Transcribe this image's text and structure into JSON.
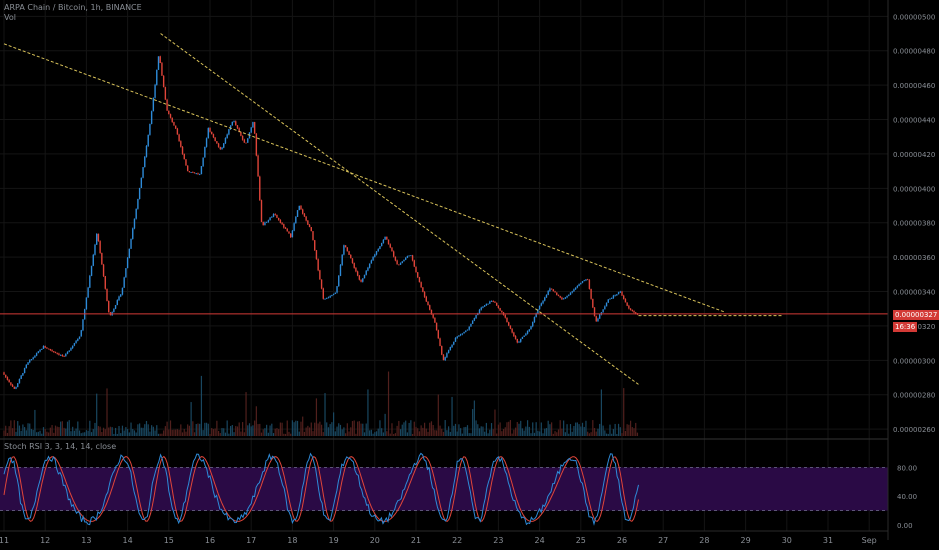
{
  "header": {
    "title": "ARPA Chain / Bitcoin, 1h, BINANCE",
    "vol_label": "Vol"
  },
  "indicator": {
    "label": "Stoch RSI 3, 3, 14, 14, close",
    "ticks": [
      "80.00",
      "40.00",
      "0.00"
    ],
    "upper_band": 80,
    "lower_band": 20
  },
  "price_axis": {
    "ticks": [
      "0.00000500",
      "0.00000480",
      "0.00000460",
      "0.00000440",
      "0.00000420",
      "0.00000400",
      "0.00000380",
      "0.00000360",
      "0.00000340",
      "0.00000320",
      "0.00000300",
      "0.00000280",
      "0.00000260"
    ],
    "current_price": "0.00000327",
    "countdown": "16:36"
  },
  "time_axis": {
    "ticks": [
      "11",
      "12",
      "13",
      "14",
      "15",
      "16",
      "17",
      "18",
      "19",
      "20",
      "21",
      "22",
      "23",
      "24",
      "25",
      "26",
      "27",
      "28",
      "29",
      "30",
      "31",
      "Sep"
    ]
  },
  "colors": {
    "up": "#2e8bd8",
    "down": "#e0453a",
    "trendline": "#d8c25a",
    "price_line": "#d33a36",
    "stoch_k": "#2e8bd8",
    "stoch_d": "#e0453a",
    "band_fill": "#2a0a45"
  },
  "chart_data": {
    "type": "candlestick",
    "timeframe": "1h",
    "x_range": [
      "Aug 11",
      "Sep 1"
    ],
    "ylim": [
      2.56e-06,
      5.06e-06
    ],
    "price_keypoints": [
      {
        "day": 11.0,
        "price": 2.93e-06
      },
      {
        "day": 11.3,
        "price": 2.83e-06
      },
      {
        "day": 11.6,
        "price": 2.98e-06
      },
      {
        "day": 12.0,
        "price": 3.08e-06
      },
      {
        "day": 12.5,
        "price": 3.02e-06
      },
      {
        "day": 12.9,
        "price": 3.15e-06
      },
      {
        "day": 13.3,
        "price": 3.75e-06
      },
      {
        "day": 13.6,
        "price": 3.25e-06
      },
      {
        "day": 13.9,
        "price": 3.4e-06
      },
      {
        "day": 14.3,
        "price": 3.95e-06
      },
      {
        "day": 14.6,
        "price": 4.4e-06
      },
      {
        "day": 14.8,
        "price": 4.78e-06
      },
      {
        "day": 15.0,
        "price": 4.45e-06
      },
      {
        "day": 15.2,
        "price": 4.35e-06
      },
      {
        "day": 15.5,
        "price": 4.1e-06
      },
      {
        "day": 15.8,
        "price": 4.08e-06
      },
      {
        "day": 16.0,
        "price": 4.35e-06
      },
      {
        "day": 16.3,
        "price": 4.22e-06
      },
      {
        "day": 16.6,
        "price": 4.4e-06
      },
      {
        "day": 16.9,
        "price": 4.25e-06
      },
      {
        "day": 17.1,
        "price": 4.4e-06
      },
      {
        "day": 17.3,
        "price": 3.78e-06
      },
      {
        "day": 17.6,
        "price": 3.85e-06
      },
      {
        "day": 18.0,
        "price": 3.72e-06
      },
      {
        "day": 18.2,
        "price": 3.9e-06
      },
      {
        "day": 18.5,
        "price": 3.75e-06
      },
      {
        "day": 18.8,
        "price": 3.35e-06
      },
      {
        "day": 19.1,
        "price": 3.4e-06
      },
      {
        "day": 19.3,
        "price": 3.68e-06
      },
      {
        "day": 19.7,
        "price": 3.45e-06
      },
      {
        "day": 20.0,
        "price": 3.6e-06
      },
      {
        "day": 20.3,
        "price": 3.72e-06
      },
      {
        "day": 20.6,
        "price": 3.55e-06
      },
      {
        "day": 20.9,
        "price": 3.62e-06
      },
      {
        "day": 21.2,
        "price": 3.4e-06
      },
      {
        "day": 21.5,
        "price": 3.22e-06
      },
      {
        "day": 21.7,
        "price": 3e-06
      },
      {
        "day": 22.0,
        "price": 3.13e-06
      },
      {
        "day": 22.3,
        "price": 3.18e-06
      },
      {
        "day": 22.6,
        "price": 3.3e-06
      },
      {
        "day": 22.9,
        "price": 3.35e-06
      },
      {
        "day": 23.2,
        "price": 3.25e-06
      },
      {
        "day": 23.5,
        "price": 3.1e-06
      },
      {
        "day": 23.8,
        "price": 3.18e-06
      },
      {
        "day": 24.0,
        "price": 3.3e-06
      },
      {
        "day": 24.3,
        "price": 3.42e-06
      },
      {
        "day": 24.6,
        "price": 3.35e-06
      },
      {
        "day": 24.9,
        "price": 3.42e-06
      },
      {
        "day": 25.2,
        "price": 3.48e-06
      },
      {
        "day": 25.4,
        "price": 3.22e-06
      },
      {
        "day": 25.7,
        "price": 3.35e-06
      },
      {
        "day": 26.0,
        "price": 3.4e-06
      },
      {
        "day": 26.2,
        "price": 3.3e-06
      },
      {
        "day": 26.4,
        "price": 3.27e-06
      }
    ],
    "trendlines": [
      {
        "from": {
          "day": 11.0,
          "price": 4.84e-06
        },
        "to": {
          "day": 28.5,
          "price": 3.28e-06
        }
      },
      {
        "from": {
          "day": 14.8,
          "price": 4.9e-06
        },
        "to": {
          "day": 26.4,
          "price": 2.86e-06
        }
      },
      {
        "from": {
          "day": 26.4,
          "price": 3.26e-06
        },
        "to": {
          "day": 29.9,
          "price": 3.26e-06
        }
      }
    ],
    "current_price_value": 3.27e-06,
    "stoch_rsi": {
      "range": [
        0,
        100
      ],
      "upper_band": 80,
      "lower_band": 20
    }
  }
}
